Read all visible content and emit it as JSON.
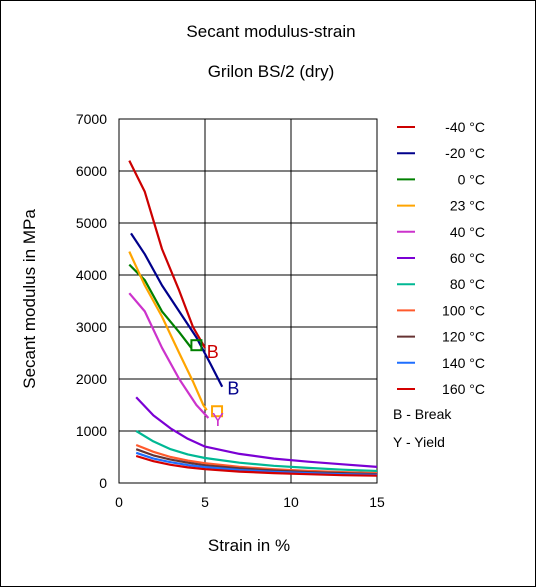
{
  "chart_data": {
    "type": "line",
    "title": "Secant modulus-strain",
    "subtitle": "Grilon BS/2 (dry)",
    "xlabel": "Strain in %",
    "ylabel": "Secant modulus in MPa",
    "xlim": [
      0,
      15
    ],
    "ylim": [
      0,
      7000
    ],
    "x_ticks": [
      "0",
      "5",
      "10",
      "15"
    ],
    "y_ticks": [
      "0",
      "1000",
      "2000",
      "3000",
      "4000",
      "5000",
      "6000",
      "7000"
    ],
    "grid": true,
    "legend_position": "right",
    "series": [
      {
        "name": "-40 °C",
        "color": "#cc0000",
        "points": [
          [
            0.6,
            6200
          ],
          [
            1.5,
            5600
          ],
          [
            2.5,
            4500
          ],
          [
            3.5,
            3700
          ],
          [
            4.3,
            3000
          ],
          [
            5.0,
            2600
          ]
        ],
        "end_marker": "B"
      },
      {
        "name": "-20 °C",
        "color": "#00008b",
        "points": [
          [
            0.7,
            4800
          ],
          [
            1.5,
            4400
          ],
          [
            2.5,
            3800
          ],
          [
            3.5,
            3300
          ],
          [
            4.5,
            2800
          ],
          [
            5.3,
            2300
          ],
          [
            6.0,
            1850
          ]
        ],
        "end_marker": "B"
      },
      {
        "name": "0 °C",
        "color": "#008000",
        "points": [
          [
            0.6,
            4200
          ],
          [
            1.5,
            3900
          ],
          [
            2.5,
            3300
          ],
          [
            3.5,
            2900
          ],
          [
            4.2,
            2600
          ]
        ]
      },
      {
        "name": "23 °C",
        "color": "#ffa500",
        "points": [
          [
            0.6,
            4450
          ],
          [
            1.5,
            3800
          ],
          [
            2.5,
            3200
          ],
          [
            3.5,
            2500
          ],
          [
            4.3,
            1950
          ],
          [
            4.9,
            1500
          ],
          [
            5.1,
            1400
          ]
        ],
        "end_marker": "Y"
      },
      {
        "name": "40 °C",
        "color": "#cc33cc",
        "points": [
          [
            0.6,
            3650
          ],
          [
            1.5,
            3300
          ],
          [
            2.5,
            2600
          ],
          [
            3.5,
            2000
          ],
          [
            4.5,
            1500
          ],
          [
            5.2,
            1250
          ]
        ]
      },
      {
        "name": "60 °C",
        "color": "#7b00d4",
        "points": [
          [
            1.0,
            1650
          ],
          [
            2.0,
            1300
          ],
          [
            3.0,
            1050
          ],
          [
            4.0,
            850
          ],
          [
            5.0,
            700
          ],
          [
            7.0,
            560
          ],
          [
            9.0,
            470
          ],
          [
            11.0,
            410
          ],
          [
            13.0,
            360
          ],
          [
            15.0,
            310
          ]
        ]
      },
      {
        "name": "80 °C",
        "color": "#00b894",
        "points": [
          [
            1.0,
            1000
          ],
          [
            2.0,
            800
          ],
          [
            3.0,
            650
          ],
          [
            4.0,
            550
          ],
          [
            5.0,
            480
          ],
          [
            7.0,
            390
          ],
          [
            9.0,
            330
          ],
          [
            11.0,
            290
          ],
          [
            13.0,
            255
          ],
          [
            15.0,
            230
          ]
        ]
      },
      {
        "name": "100 °C",
        "color": "#ff5a2d",
        "points": [
          [
            1.0,
            730
          ],
          [
            2.0,
            600
          ],
          [
            3.0,
            500
          ],
          [
            4.0,
            430
          ],
          [
            5.0,
            380
          ],
          [
            7.0,
            310
          ],
          [
            9.0,
            265
          ],
          [
            11.0,
            235
          ],
          [
            13.0,
            210
          ],
          [
            15.0,
            190
          ]
        ]
      },
      {
        "name": "120 °C",
        "color": "#663333",
        "points": [
          [
            1.0,
            650
          ],
          [
            2.0,
            530
          ],
          [
            3.0,
            450
          ],
          [
            4.0,
            390
          ],
          [
            5.0,
            340
          ],
          [
            7.0,
            280
          ],
          [
            9.0,
            240
          ],
          [
            11.0,
            210
          ],
          [
            13.0,
            190
          ],
          [
            15.0,
            170
          ]
        ]
      },
      {
        "name": "140 °C",
        "color": "#1e6fff",
        "points": [
          [
            1.0,
            580
          ],
          [
            2.0,
            470
          ],
          [
            3.0,
            400
          ],
          [
            4.0,
            345
          ],
          [
            5.0,
            305
          ],
          [
            7.0,
            250
          ],
          [
            9.0,
            215
          ],
          [
            11.0,
            190
          ],
          [
            13.0,
            170
          ],
          [
            15.0,
            155
          ]
        ]
      },
      {
        "name": "160 °C",
        "color": "#d40000",
        "points": [
          [
            1.0,
            520
          ],
          [
            2.0,
            420
          ],
          [
            3.0,
            350
          ],
          [
            4.0,
            300
          ],
          [
            5.0,
            265
          ],
          [
            7.0,
            220
          ],
          [
            9.0,
            190
          ],
          [
            11.0,
            170
          ],
          [
            13.0,
            150
          ],
          [
            15.0,
            140
          ]
        ]
      }
    ],
    "annotations": [
      {
        "text": "B",
        "x": 5.1,
        "y": 2400,
        "color": "#cc0000"
      },
      {
        "text": "B",
        "x": 6.3,
        "y": 1700,
        "color": "#00008b"
      },
      {
        "text": "Y",
        "x": 5.4,
        "y": 1100,
        "color": "#cc33cc"
      }
    ],
    "extra_markers": [
      {
        "shape": "square",
        "x": 4.5,
        "y": 2650,
        "color": "#008000"
      },
      {
        "shape": "square",
        "x": 5.7,
        "y": 1380,
        "color": "#ffa500"
      }
    ],
    "notes": [
      "B - Break",
      "Y - Yield"
    ]
  }
}
